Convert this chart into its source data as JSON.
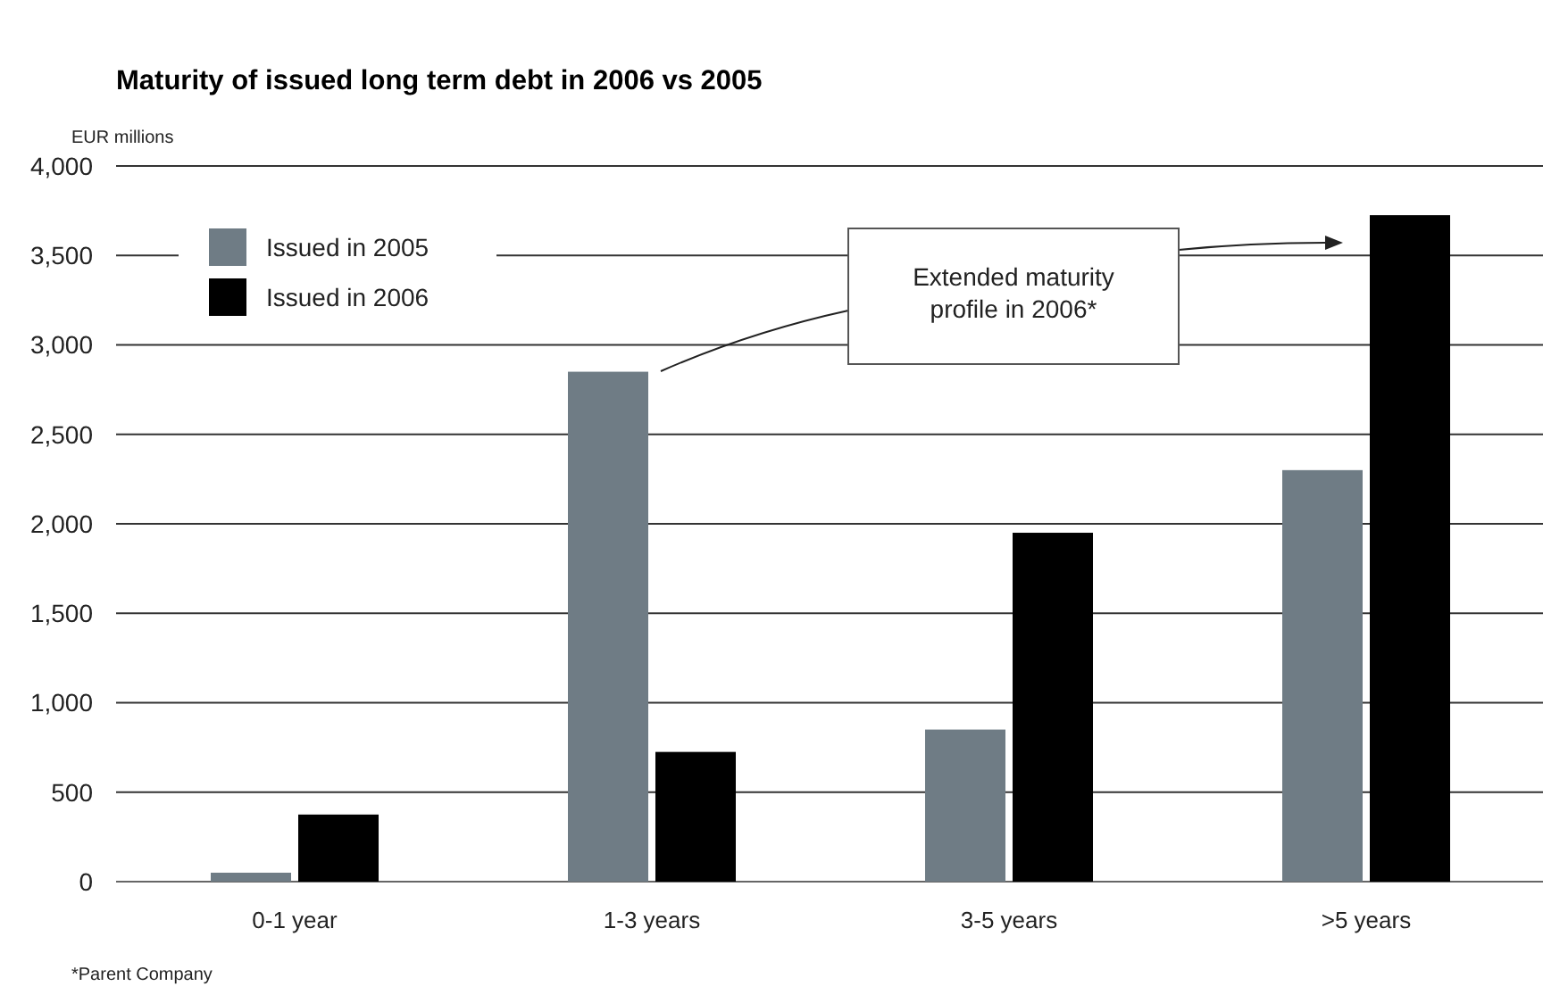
{
  "chart_data": {
    "type": "bar",
    "title": "Maturity of issued long term debt in 2006 vs 2005",
    "ylabel": "EUR millions",
    "categories": [
      "0-1 year",
      "1-3 years",
      "3-5 years",
      ">5 years"
    ],
    "series": [
      {
        "name": "Issued in 2005",
        "color": "#6f7c85",
        "values": [
          50,
          2850,
          850,
          2300
        ]
      },
      {
        "name": "Issued in 2006",
        "color": "#000000",
        "values": [
          375,
          725,
          1950,
          3725
        ]
      }
    ],
    "ylim": [
      0,
      4000
    ],
    "yticks": [
      {
        "value": 0,
        "label": "0"
      },
      {
        "value": 500,
        "label": "500"
      },
      {
        "value": 1000,
        "label": "1,000"
      },
      {
        "value": 1500,
        "label": "1,500"
      },
      {
        "value": 2000,
        "label": "2,000"
      },
      {
        "value": 2500,
        "label": "2,500"
      },
      {
        "value": 3000,
        "label": "3,000"
      },
      {
        "value": 3500,
        "label": "3,500"
      },
      {
        "value": 4000,
        "label": "4,000"
      }
    ],
    "grid": "y",
    "legend": "top left",
    "annotations": [
      "Extended maturity profile in 2006*",
      "*Parent Company"
    ]
  }
}
